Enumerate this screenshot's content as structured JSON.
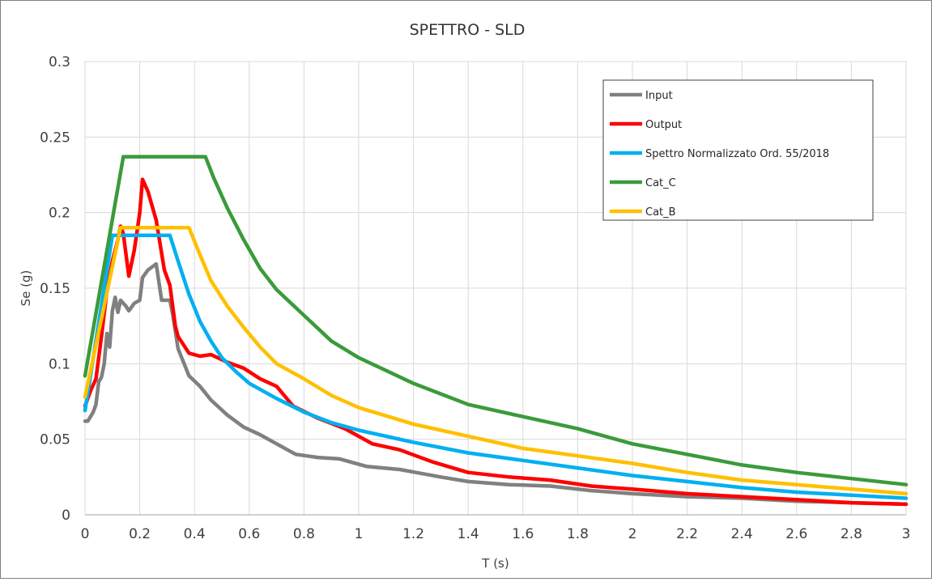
{
  "chart_data": {
    "type": "line",
    "title": "SPETTRO - SLD",
    "xlabel": "T (s)",
    "ylabel": "Se (g)",
    "xlim": [
      0,
      3
    ],
    "ylim": [
      0,
      0.3
    ],
    "grid": true,
    "legend_position": "top-right",
    "x_ticks": [
      "0",
      "0.2",
      "0.4",
      "0.6",
      "0.8",
      "1",
      "1.2",
      "1.4",
      "1.6",
      "1.8",
      "2",
      "2.2",
      "2.4",
      "2.6",
      "2.8",
      "3"
    ],
    "y_ticks": [
      "0",
      "0.05",
      "0.1",
      "0.15",
      "0.2",
      "0.25",
      "0.3"
    ],
    "series": [
      {
        "name": "Input",
        "color": "#808080",
        "points": [
          [
            0,
            0.062
          ],
          [
            0.01,
            0.062
          ],
          [
            0.02,
            0.065
          ],
          [
            0.03,
            0.068
          ],
          [
            0.04,
            0.073
          ],
          [
            0.05,
            0.088
          ],
          [
            0.06,
            0.091
          ],
          [
            0.07,
            0.1
          ],
          [
            0.08,
            0.12
          ],
          [
            0.09,
            0.111
          ],
          [
            0.1,
            0.135
          ],
          [
            0.11,
            0.144
          ],
          [
            0.12,
            0.134
          ],
          [
            0.13,
            0.142
          ],
          [
            0.15,
            0.138
          ],
          [
            0.16,
            0.135
          ],
          [
            0.18,
            0.14
          ],
          [
            0.2,
            0.142
          ],
          [
            0.21,
            0.157
          ],
          [
            0.23,
            0.162
          ],
          [
            0.26,
            0.166
          ],
          [
            0.28,
            0.142
          ],
          [
            0.31,
            0.142
          ],
          [
            0.32,
            0.133
          ],
          [
            0.34,
            0.11
          ],
          [
            0.38,
            0.092
          ],
          [
            0.42,
            0.085
          ],
          [
            0.46,
            0.076
          ],
          [
            0.52,
            0.066
          ],
          [
            0.58,
            0.058
          ],
          [
            0.64,
            0.053
          ],
          [
            0.7,
            0.047
          ],
          [
            0.77,
            0.04
          ],
          [
            0.85,
            0.038
          ],
          [
            0.93,
            0.037
          ],
          [
            1.03,
            0.032
          ],
          [
            1.15,
            0.03
          ],
          [
            1.3,
            0.025
          ],
          [
            1.4,
            0.022
          ],
          [
            1.55,
            0.02
          ],
          [
            1.7,
            0.019
          ],
          [
            1.85,
            0.016
          ],
          [
            2,
            0.014
          ],
          [
            2.2,
            0.012
          ],
          [
            2.4,
            0.011
          ],
          [
            2.6,
            0.009
          ],
          [
            2.8,
            0.008
          ],
          [
            3,
            0.007
          ]
        ]
      },
      {
        "name": "Output",
        "color": "#ff0000",
        "points": [
          [
            0,
            0.072
          ],
          [
            0.02,
            0.082
          ],
          [
            0.04,
            0.09
          ],
          [
            0.06,
            0.118
          ],
          [
            0.08,
            0.148
          ],
          [
            0.1,
            0.168
          ],
          [
            0.12,
            0.182
          ],
          [
            0.13,
            0.191
          ],
          [
            0.14,
            0.186
          ],
          [
            0.16,
            0.158
          ],
          [
            0.18,
            0.175
          ],
          [
            0.2,
            0.2
          ],
          [
            0.21,
            0.222
          ],
          [
            0.23,
            0.214
          ],
          [
            0.26,
            0.195
          ],
          [
            0.29,
            0.162
          ],
          [
            0.31,
            0.152
          ],
          [
            0.33,
            0.125
          ],
          [
            0.34,
            0.118
          ],
          [
            0.38,
            0.107
          ],
          [
            0.42,
            0.105
          ],
          [
            0.46,
            0.106
          ],
          [
            0.52,
            0.101
          ],
          [
            0.58,
            0.097
          ],
          [
            0.64,
            0.09
          ],
          [
            0.7,
            0.085
          ],
          [
            0.76,
            0.072
          ],
          [
            0.85,
            0.064
          ],
          [
            0.95,
            0.057
          ],
          [
            1.05,
            0.047
          ],
          [
            1.15,
            0.043
          ],
          [
            1.27,
            0.035
          ],
          [
            1.4,
            0.028
          ],
          [
            1.55,
            0.025
          ],
          [
            1.7,
            0.023
          ],
          [
            1.85,
            0.019
          ],
          [
            2,
            0.017
          ],
          [
            2.2,
            0.014
          ],
          [
            2.4,
            0.012
          ],
          [
            2.6,
            0.01
          ],
          [
            2.8,
            0.008
          ],
          [
            3,
            0.007
          ]
        ]
      },
      {
        "name": "Spettro Normalizzato Ord. 55/2018",
        "color": "#00b0f0",
        "points": [
          [
            0,
            0.069
          ],
          [
            0.1,
            0.185
          ],
          [
            0.31,
            0.185
          ],
          [
            0.34,
            0.168
          ],
          [
            0.38,
            0.146
          ],
          [
            0.42,
            0.128
          ],
          [
            0.46,
            0.115
          ],
          [
            0.5,
            0.104
          ],
          [
            0.55,
            0.095
          ],
          [
            0.6,
            0.087
          ],
          [
            0.7,
            0.077
          ],
          [
            0.8,
            0.068
          ],
          [
            0.9,
            0.061
          ],
          [
            1,
            0.056
          ],
          [
            1.2,
            0.048
          ],
          [
            1.4,
            0.041
          ],
          [
            1.6,
            0.036
          ],
          [
            1.8,
            0.031
          ],
          [
            2,
            0.026
          ],
          [
            2.2,
            0.022
          ],
          [
            2.4,
            0.018
          ],
          [
            2.6,
            0.015
          ],
          [
            2.8,
            0.013
          ],
          [
            3,
            0.011
          ]
        ]
      },
      {
        "name": "Cat_C",
        "color": "#3a9b3a",
        "points": [
          [
            0,
            0.092
          ],
          [
            0.14,
            0.237
          ],
          [
            0.44,
            0.237
          ],
          [
            0.47,
            0.223
          ],
          [
            0.52,
            0.203
          ],
          [
            0.58,
            0.182
          ],
          [
            0.64,
            0.163
          ],
          [
            0.7,
            0.149
          ],
          [
            0.8,
            0.132
          ],
          [
            0.9,
            0.115
          ],
          [
            1,
            0.104
          ],
          [
            1.2,
            0.087
          ],
          [
            1.4,
            0.073
          ],
          [
            1.6,
            0.065
          ],
          [
            1.8,
            0.057
          ],
          [
            2,
            0.047
          ],
          [
            2.2,
            0.04
          ],
          [
            2.4,
            0.033
          ],
          [
            2.6,
            0.028
          ],
          [
            2.8,
            0.024
          ],
          [
            3,
            0.02
          ]
        ]
      },
      {
        "name": "Cat_B",
        "color": "#ffc000",
        "points": [
          [
            0,
            0.078
          ],
          [
            0.13,
            0.19
          ],
          [
            0.38,
            0.19
          ],
          [
            0.42,
            0.172
          ],
          [
            0.46,
            0.155
          ],
          [
            0.52,
            0.138
          ],
          [
            0.58,
            0.124
          ],
          [
            0.64,
            0.111
          ],
          [
            0.7,
            0.1
          ],
          [
            0.8,
            0.09
          ],
          [
            0.9,
            0.079
          ],
          [
            1,
            0.071
          ],
          [
            1.2,
            0.06
          ],
          [
            1.4,
            0.052
          ],
          [
            1.6,
            0.044
          ],
          [
            1.8,
            0.039
          ],
          [
            2,
            0.034
          ],
          [
            2.2,
            0.028
          ],
          [
            2.4,
            0.023
          ],
          [
            2.6,
            0.02
          ],
          [
            2.8,
            0.017
          ],
          [
            3,
            0.014
          ]
        ]
      }
    ]
  }
}
